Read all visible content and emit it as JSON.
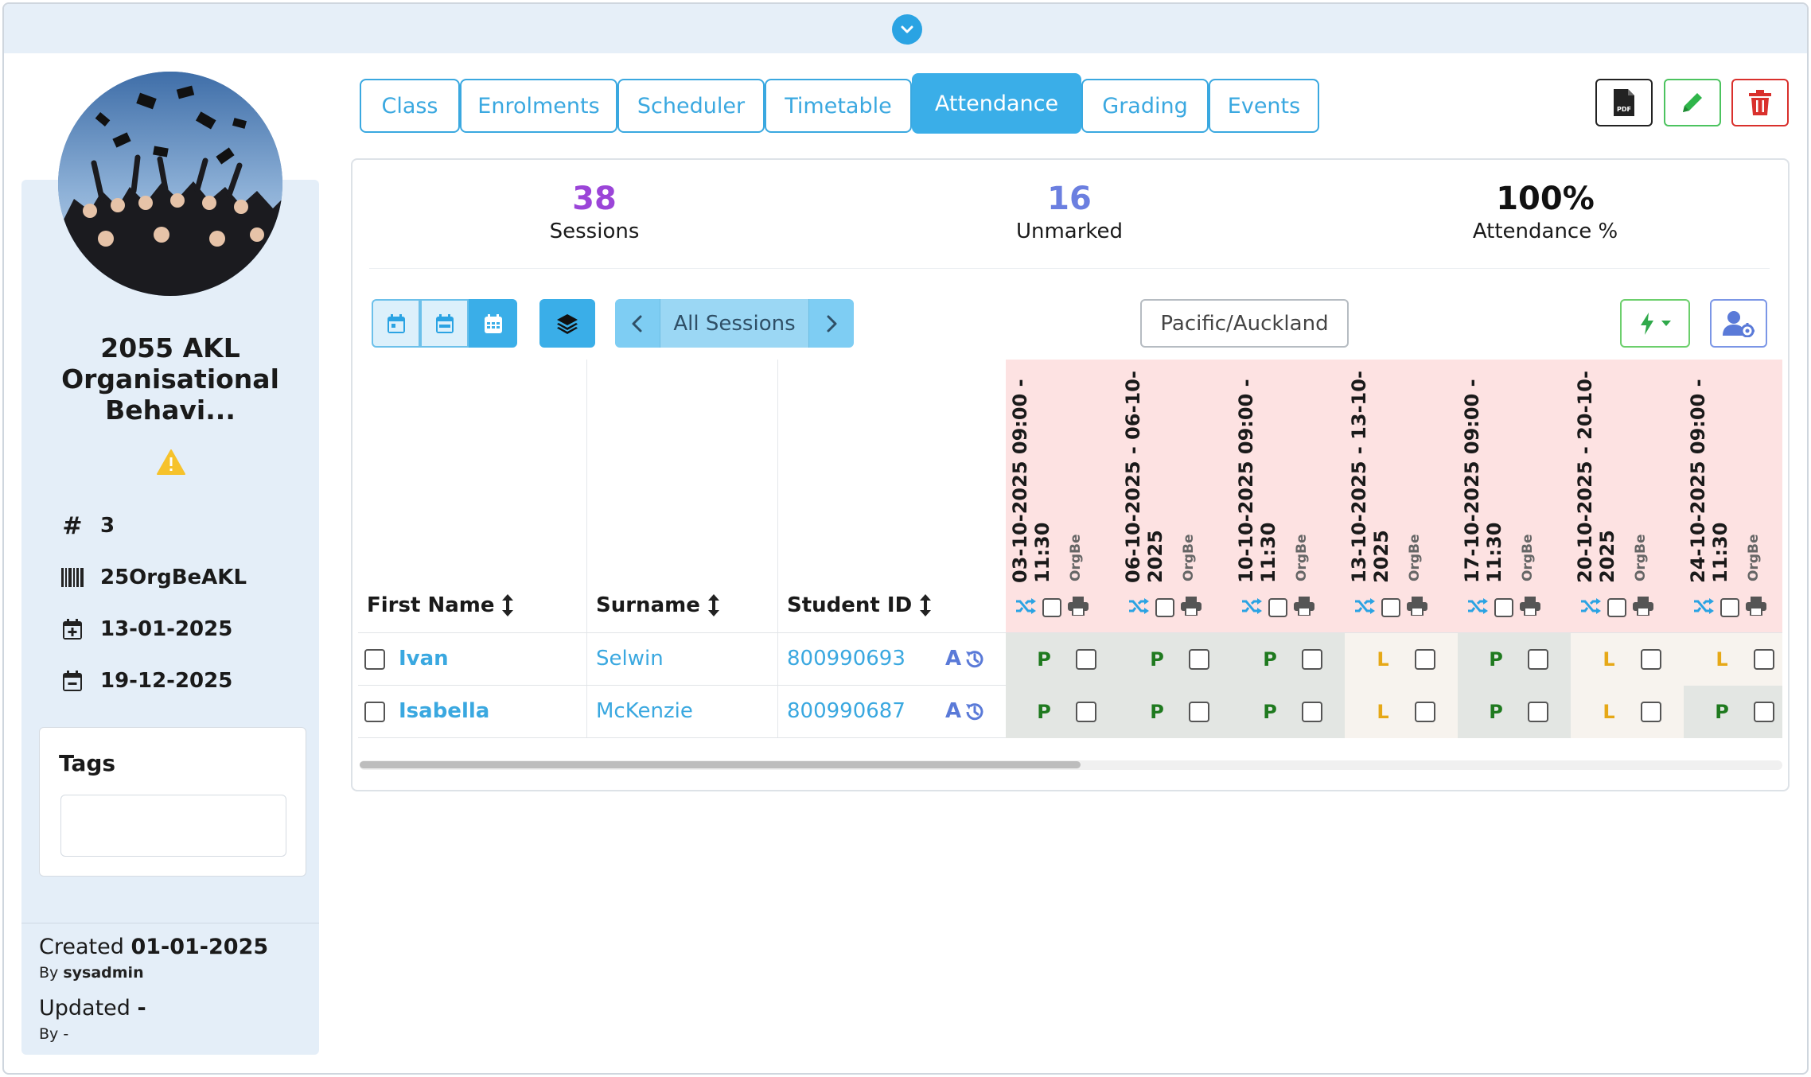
{
  "sidebar": {
    "title": "2055 AKL Organisational Behavi...",
    "meta": [
      {
        "icon": "hash-icon",
        "value": "3"
      },
      {
        "icon": "barcode-icon",
        "value": "25OrgBeAKL"
      },
      {
        "icon": "calendar-plus-icon",
        "value": "13-01-2025"
      },
      {
        "icon": "calendar-minus-icon",
        "value": "19-12-2025"
      }
    ],
    "tags_title": "Tags",
    "created_label": "Created",
    "created_date": "01-01-2025",
    "created_by_label": "By",
    "created_by": "sysadmin",
    "updated_label": "Updated",
    "updated_date": "-",
    "updated_by_label": "By",
    "updated_by": "-"
  },
  "tabs": [
    {
      "label": "Class",
      "active": false
    },
    {
      "label": "Enrolments",
      "active": false
    },
    {
      "label": "Scheduler",
      "active": false
    },
    {
      "label": "Timetable",
      "active": false
    },
    {
      "label": "Attendance",
      "active": true
    },
    {
      "label": "Grading",
      "active": false
    },
    {
      "label": "Events",
      "active": false
    }
  ],
  "actions": [
    {
      "name": "pdf-button",
      "icon": "pdf-icon",
      "color": "#222222"
    },
    {
      "name": "edit-button",
      "icon": "pencil-icon",
      "color": "#2fb54a"
    },
    {
      "name": "delete-button",
      "icon": "trash-icon",
      "color": "#d9302c"
    }
  ],
  "stats": [
    {
      "value": "38",
      "label": "Sessions",
      "color": "#9b45d8"
    },
    {
      "value": "16",
      "label": "Unmarked",
      "color": "#6b7fe0"
    },
    {
      "value": "100%",
      "label": "Attendance %",
      "color": "#111111"
    }
  ],
  "toolbar": {
    "session_filter": "All Sessions",
    "timezone": "Pacific/Auckland"
  },
  "table": {
    "columns": [
      "First Name",
      "Surname",
      "Student ID"
    ],
    "sessions": [
      {
        "date": "03-10-2025 09:00 - 11:30",
        "org": "OrgBe"
      },
      {
        "date": "06-10-2025 - 06-10-2025",
        "org": "OrgBe"
      },
      {
        "date": "10-10-2025 09:00 - 11:30",
        "org": "OrgBe"
      },
      {
        "date": "13-10-2025 - 13-10-2025",
        "org": "OrgBe"
      },
      {
        "date": "17-10-2025 09:00 - 11:30",
        "org": "OrgBe"
      },
      {
        "date": "20-10-2025 - 20-10-2025",
        "org": "OrgBe"
      },
      {
        "date": "24-10-2025 09:00 - 11:30",
        "org": "OrgBe"
      }
    ],
    "rows": [
      {
        "first_name": "Ivan",
        "surname": "Selwin",
        "student_id": "800990693",
        "badge": "A",
        "attendance": [
          "P",
          "P",
          "P",
          "L",
          "P",
          "L",
          "L"
        ]
      },
      {
        "first_name": "Isabella",
        "surname": "McKenzie",
        "student_id": "800990687",
        "badge": "A",
        "attendance": [
          "P",
          "P",
          "P",
          "L",
          "P",
          "L",
          "P"
        ]
      }
    ]
  },
  "colors": {
    "accent": "#3aa8e0",
    "present": "#1f7a1f",
    "late": "#e6a817",
    "session_header_bg": "#fde2e2"
  }
}
